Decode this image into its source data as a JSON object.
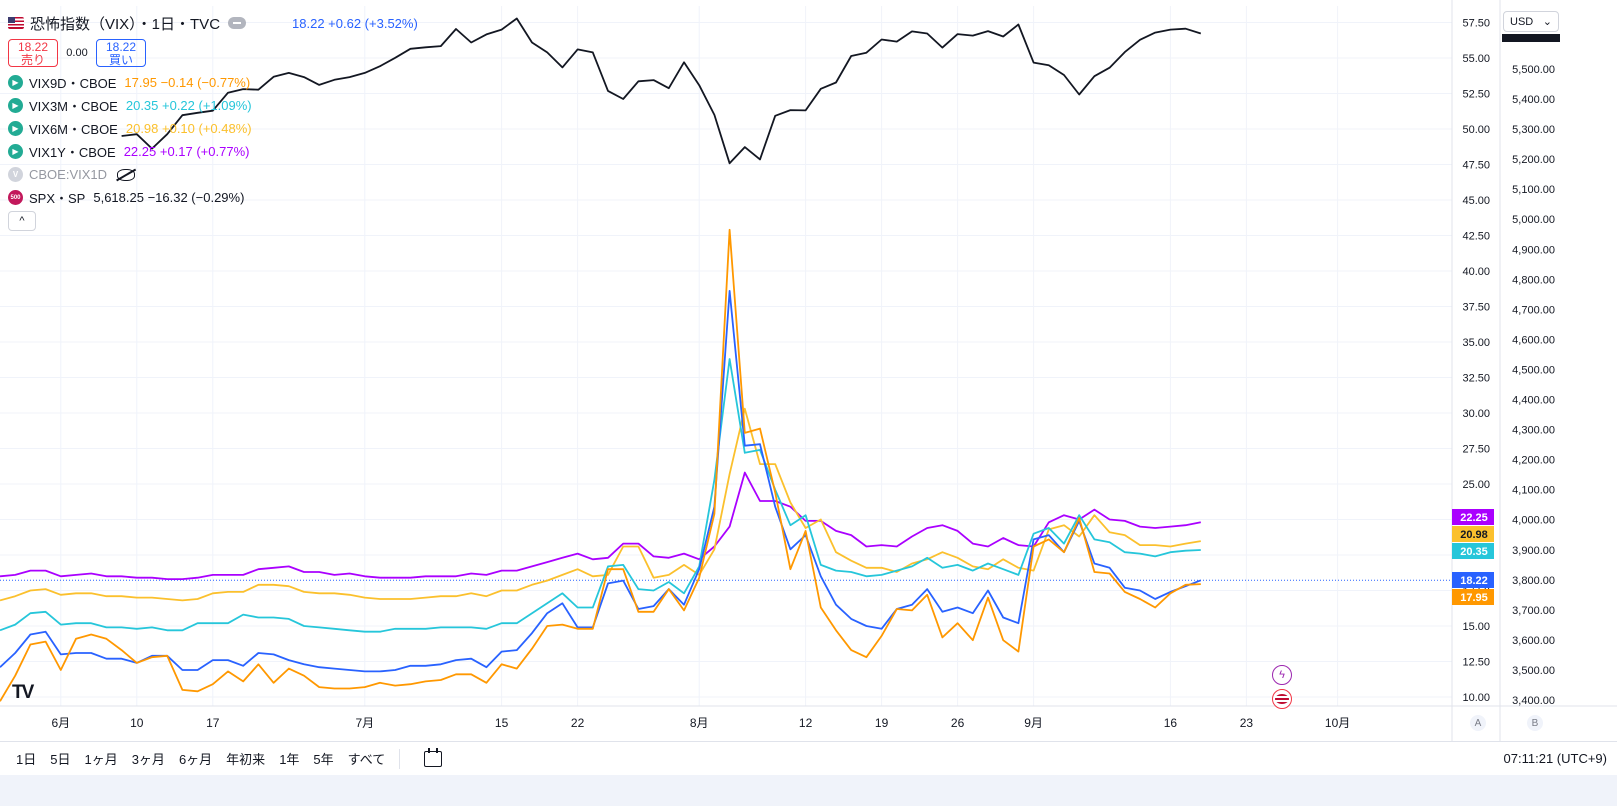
{
  "symbol": {
    "title": "恐怖指数（VIX）・1日・TVC",
    "value_text": "18.22 +0.62 (+3.52%)",
    "sell_price": "18.22",
    "sell_label": "売り",
    "spread": "0.00",
    "buy_price": "18.22",
    "buy_label": "買い"
  },
  "legend": [
    {
      "name": "VIX9D・CBOE",
      "value": "17.95 −0.14 (−0.77%)",
      "color": "#ff9800",
      "visible": true
    },
    {
      "name": "VIX3M・CBOE",
      "value": "20.35 +0.22 (+1.09%)",
      "color": "#26c6da",
      "visible": true
    },
    {
      "name": "VIX6M・CBOE",
      "value": "20.98 +0.10 (+0.48%)",
      "color": "#fbc02d",
      "visible": true
    },
    {
      "name": "VIX1Y・CBOE",
      "value": "22.25 +0.17 (+0.77%)",
      "color": "#aa00ff",
      "visible": true
    },
    {
      "name": "CBOE:VIX1D",
      "value": "",
      "color": "#b2b5be",
      "visible": false
    },
    {
      "name": "SPX・SP",
      "value": "5,618.25 −16.32 (−0.29%)",
      "color": "#131722",
      "visible": true
    }
  ],
  "currency": "USD",
  "bottom": {
    "ranges": [
      "1日",
      "5日",
      "1ヶ月",
      "3ヶ月",
      "6ヶ月",
      "年初来",
      "1年",
      "5年",
      "すべて"
    ],
    "time": "07:11:21 (UTC+9)",
    "axis_a": "A",
    "axis_b": "B"
  },
  "chart_data": {
    "type": "line",
    "x_ticks": [
      {
        "label": "6月",
        "index": 4
      },
      {
        "label": "10",
        "index": 9
      },
      {
        "label": "17",
        "index": 14
      },
      {
        "label": "7月",
        "index": 24
      },
      {
        "label": "15",
        "index": 33
      },
      {
        "label": "22",
        "index": 38
      },
      {
        "label": "8月",
        "index": 46
      },
      {
        "label": "12",
        "index": 53
      },
      {
        "label": "19",
        "index": 58
      },
      {
        "label": "26",
        "index": 63
      },
      {
        "label": "9月",
        "index": 68
      },
      {
        "label": "16",
        "index": 77
      },
      {
        "label": "23",
        "index": 82
      },
      {
        "label": "10月",
        "index": 88
      }
    ],
    "left_axis": {
      "ticks": [
        10,
        12.5,
        15,
        17.5,
        20,
        22.5,
        25,
        27.5,
        30,
        32.5,
        35,
        37.5,
        40,
        42.5,
        45,
        47.5,
        50,
        52.5,
        55,
        57.5
      ],
      "labels": [
        "10.00",
        "12.50",
        "15.00",
        "17.50",
        "20.00",
        "22.50",
        "25.00",
        "27.50",
        "30.00",
        "32.50",
        "35.00",
        "37.50",
        "40.00",
        "42.50",
        "45.00",
        "47.50",
        "50.00",
        "52.50",
        "55.00",
        "57.50"
      ]
    },
    "right_axis": {
      "ticks": [
        3400,
        3500,
        3600,
        3700,
        3800,
        3900,
        4000,
        4100,
        4200,
        4300,
        4400,
        4500,
        4600,
        4700,
        4800,
        4900,
        5000,
        5100,
        5200,
        5300,
        5400,
        5500
      ],
      "labels": [
        "3,400.00",
        "3,500.00",
        "3,600.00",
        "3,700.00",
        "3,800.00",
        "3,900.00",
        "4,000.00",
        "4,100.00",
        "4,200.00",
        "4,300.00",
        "4,400.00",
        "4,500.00",
        "4,600.00",
        "4,700.00",
        "4,800.00",
        "4,900.00",
        "5,000.00",
        "5,100.00",
        "5,200.00",
        "5,300.00",
        "5,400.00",
        "5,500.00"
      ]
    },
    "last_labels": [
      {
        "text": "22.25",
        "value": 22.25,
        "color": "#aa00ff"
      },
      {
        "text": "20.98",
        "value": 20.98,
        "color": "#fbc02d"
      },
      {
        "text": "20.35",
        "value": 20.35,
        "color": "#26c6da"
      },
      {
        "text": "18.22",
        "value": 18.22,
        "color": "#2962ff"
      },
      {
        "text": "17.95",
        "value": 17.95,
        "color": "#ff9800"
      }
    ],
    "series": [
      {
        "name": "VIX1Y・CBOE",
        "color": "#aa00ff",
        "width": 1.8,
        "axis": "left",
        "values": [
          18.5,
          18.6,
          18.9,
          18.9,
          18.5,
          18.6,
          18.7,
          18.5,
          18.5,
          18.4,
          18.4,
          18.3,
          18.3,
          18.4,
          18.6,
          18.6,
          18.6,
          19.0,
          19.1,
          19.2,
          18.8,
          18.8,
          18.6,
          18.7,
          18.5,
          18.4,
          18.4,
          18.4,
          18.5,
          18.5,
          18.5,
          18.7,
          18.6,
          18.9,
          18.9,
          19.2,
          19.5,
          19.8,
          20.1,
          19.7,
          19.8,
          20.8,
          20.8,
          19.9,
          19.8,
          20.1,
          19.7,
          20.6,
          22.0,
          25.8,
          23.8,
          23.8,
          23.4,
          22.4,
          22.4,
          21.7,
          21.4,
          20.6,
          20.7,
          20.6,
          21.3,
          21.9,
          22.1,
          21.7,
          20.8,
          20.6,
          21.2,
          20.7,
          20.6,
          22.3,
          22.8,
          22.5,
          23.2,
          22.5,
          22.4,
          22.0,
          21.9,
          22.0,
          22.1,
          22.3
        ]
      },
      {
        "name": "VIX6M・CBOE",
        "color": "#fbc02d",
        "width": 1.8,
        "axis": "left",
        "values": [
          16.8,
          17.1,
          17.5,
          17.6,
          17.2,
          17.3,
          17.3,
          17.1,
          17.1,
          17.0,
          17.0,
          16.9,
          16.8,
          16.9,
          17.3,
          17.4,
          17.4,
          17.9,
          17.9,
          17.8,
          17.4,
          17.3,
          17.3,
          17.2,
          17.0,
          16.9,
          16.9,
          16.9,
          17.0,
          17.1,
          17.1,
          17.3,
          17.1,
          17.5,
          17.5,
          17.9,
          18.2,
          18.6,
          19.0,
          18.5,
          18.6,
          20.6,
          20.6,
          18.4,
          18.6,
          19.3,
          18.6,
          20.4,
          25.7,
          30.3,
          26.4,
          26.4,
          23.7,
          21.9,
          22.5,
          20.2,
          19.6,
          19.1,
          19.1,
          18.8,
          19.4,
          19.7,
          20.2,
          19.8,
          19.2,
          19.0,
          19.7,
          19.1,
          18.9,
          21.8,
          22.1,
          21.3,
          22.8,
          21.6,
          21.4,
          20.7,
          20.7,
          20.6,
          20.8,
          20.98
        ]
      },
      {
        "name": "VIX3M・CBOE",
        "color": "#26c6da",
        "width": 1.8,
        "axis": "left",
        "values": [
          14.7,
          15.1,
          15.9,
          16.0,
          15.1,
          15.2,
          15.2,
          14.9,
          14.9,
          14.8,
          14.9,
          14.7,
          14.7,
          15.2,
          15.2,
          15.2,
          15.8,
          15.6,
          15.6,
          15.5,
          15.0,
          14.9,
          14.8,
          14.7,
          14.6,
          14.6,
          14.8,
          14.8,
          14.8,
          14.9,
          14.9,
          14.9,
          14.8,
          15.2,
          15.2,
          15.9,
          16.6,
          17.3,
          16.3,
          16.3,
          19.2,
          19.3,
          17.6,
          17.5,
          18.1,
          17.3,
          19.2,
          25.3,
          33.8,
          27.2,
          27.4,
          24.6,
          22.1,
          22.8,
          19.3,
          18.9,
          18.8,
          18.5,
          18.6,
          18.9,
          19.2,
          19.8,
          19.1,
          19.3,
          18.9,
          19.4,
          19.0,
          18.6,
          21.5,
          21.9,
          20.8,
          22.8,
          21.1,
          20.9,
          20.2,
          20.1,
          19.9,
          20.2,
          20.3,
          20.35
        ]
      },
      {
        "name": "VIX・TVC",
        "color": "#2962ff",
        "width": 1.8,
        "axis": "left",
        "values": [
          12.1,
          13.1,
          14.4,
          14.6,
          13.0,
          13.1,
          13.1,
          12.7,
          12.7,
          12.4,
          12.9,
          12.9,
          11.9,
          11.9,
          12.6,
          12.6,
          12.2,
          13.1,
          13.0,
          12.6,
          12.3,
          12.1,
          12.0,
          11.9,
          11.8,
          11.8,
          11.9,
          12.2,
          12.2,
          12.3,
          12.6,
          12.7,
          12.1,
          13.2,
          13.3,
          14.5,
          15.9,
          16.6,
          14.9,
          14.9,
          18.0,
          18.2,
          16.2,
          16.4,
          17.6,
          16.5,
          19.0,
          23.4,
          38.6,
          27.7,
          27.8,
          23.4,
          20.4,
          21.4,
          18.5,
          16.5,
          15.5,
          15.0,
          14.8,
          16.2,
          16.5,
          17.6,
          16.0,
          16.3,
          15.9,
          17.5,
          15.6,
          15.2,
          21.1,
          21.4,
          20.2,
          22.4,
          19.4,
          19.1,
          17.7,
          17.5,
          16.9,
          17.4,
          17.8,
          18.22
        ]
      },
      {
        "name": "VIX9D・CBOE",
        "color": "#ff9800",
        "width": 1.8,
        "axis": "left",
        "values": [
          9.7,
          11.5,
          13.7,
          13.9,
          11.9,
          14.1,
          14.4,
          14.1,
          13.3,
          12.4,
          12.8,
          12.9,
          10.5,
          10.4,
          10.9,
          11.8,
          11.1,
          12.3,
          11.0,
          12.0,
          11.5,
          10.7,
          10.6,
          10.6,
          10.7,
          11.0,
          10.8,
          10.9,
          11.1,
          11.2,
          11.6,
          11.6,
          11.0,
          12.3,
          12.0,
          13.4,
          15.0,
          15.1,
          14.8,
          14.8,
          19.0,
          19.0,
          16.0,
          16.0,
          17.6,
          16.1,
          18.4,
          22.9,
          42.9,
          28.6,
          28.9,
          24.4,
          19.0,
          21.7,
          16.3,
          14.7,
          13.3,
          12.8,
          14.3,
          16.2,
          16.1,
          17.2,
          14.2,
          15.2,
          14.0,
          17.0,
          14.0,
          13.2,
          20.6,
          21.1,
          20.2,
          22.6,
          18.8,
          18.7,
          17.4,
          16.9,
          16.3,
          17.3,
          17.9,
          17.95
        ]
      },
      {
        "name": "SPX・SP",
        "color": "#131722",
        "width": 1.8,
        "axis": "right",
        "values": [
          5277,
          5283,
          5235,
          5283,
          5346,
          5354,
          5361,
          5421,
          5433,
          5431,
          5474,
          5487,
          5473,
          5447,
          5464,
          5473,
          5487,
          5509,
          5537,
          5567,
          5572,
          5576,
          5633,
          5588,
          5615,
          5631,
          5668,
          5588,
          5555,
          5505,
          5565,
          5555,
          5427,
          5400,
          5459,
          5463,
          5436,
          5522,
          5446,
          5347,
          5186,
          5240,
          5199,
          5344,
          5363,
          5362,
          5434,
          5455,
          5543,
          5554,
          5598,
          5591,
          5625,
          5618,
          5571,
          5616,
          5611,
          5626,
          5608,
          5648,
          5521,
          5512,
          5480,
          5415,
          5476,
          5504,
          5556,
          5597,
          5621,
          5631,
          5634,
          5618
        ]
      }
    ],
    "spx_start_index": 8,
    "vix_series_x_offset": 0
  }
}
